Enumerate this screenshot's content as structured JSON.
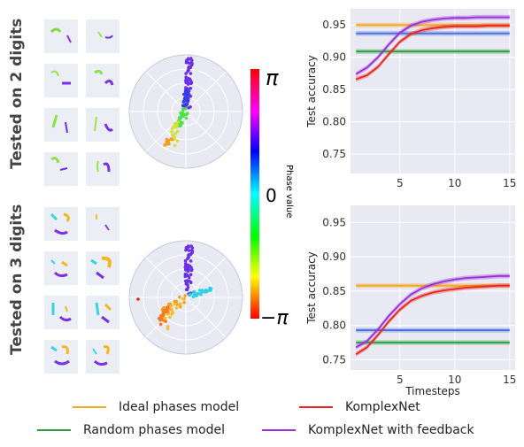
{
  "row_labels": [
    "Tested on 2 digits",
    "Tested on 3 digits"
  ],
  "colorbar": {
    "top_label": "π",
    "mid_label": "0",
    "bottom_label": "−π",
    "title": "Phase value"
  },
  "colors": {
    "ideal": "#f5a623",
    "komplexnet": "#e8261f",
    "random": "#2a9d3a",
    "feedback": "#9b30d9",
    "plot_bg": "#e8e9f3"
  },
  "legend": [
    {
      "label": "Ideal phases model",
      "color": "#f5a623"
    },
    {
      "label": "KomplexNet",
      "color": "#e8261f"
    },
    {
      "label": "Random phases model",
      "color": "#2a9d3a"
    },
    {
      "label": "KomplexNet with feedback",
      "color": "#9b30d9"
    }
  ],
  "chart_data": [
    {
      "type": "line",
      "ylabel": "Test accuracy",
      "xlabel": "",
      "xlim": [
        0.5,
        15.5
      ],
      "ylim": [
        0.72,
        0.975
      ],
      "xticks": [
        5,
        10,
        15
      ],
      "yticks": [
        0.75,
        0.8,
        0.85,
        0.9,
        0.95
      ],
      "grid": true,
      "series": [
        {
          "name": "Ideal phases model",
          "x": [
            1,
            15
          ],
          "y": [
            0.95,
            0.95
          ]
        },
        {
          "name": "Random phases model",
          "x": [
            1,
            15
          ],
          "y": [
            0.909,
            0.909
          ]
        },
        {
          "name": "KomplexNet",
          "x": [
            1,
            2,
            3,
            4,
            5,
            6,
            7,
            8,
            9,
            10,
            11,
            12,
            13,
            14,
            15
          ],
          "y": [
            0.866,
            0.872,
            0.885,
            0.905,
            0.924,
            0.936,
            0.942,
            0.945,
            0.947,
            0.948,
            0.948,
            0.948,
            0.949,
            0.949,
            0.949
          ]
        },
        {
          "name": "KomplexNet with feedback",
          "x": [
            1,
            2,
            3,
            4,
            5,
            6,
            7,
            8,
            9,
            10,
            11,
            12,
            13,
            14,
            15
          ],
          "y": [
            0.874,
            0.884,
            0.9,
            0.92,
            0.938,
            0.949,
            0.955,
            0.958,
            0.96,
            0.961,
            0.961,
            0.962,
            0.962,
            0.962,
            0.962
          ]
        },
        {
          "name": "",
          "x": [
            1,
            15
          ],
          "y": [
            0.937,
            0.937
          ]
        }
      ]
    },
    {
      "type": "line",
      "ylabel": "Test accuracy",
      "xlabel": "Timesteps",
      "xlim": [
        0.5,
        15.5
      ],
      "ylim": [
        0.735,
        0.975
      ],
      "xticks": [
        5,
        10,
        15
      ],
      "yticks": [
        0.75,
        0.8,
        0.85,
        0.9,
        0.95
      ],
      "grid": true,
      "series": [
        {
          "name": "Ideal phases model",
          "x": [
            1,
            15
          ],
          "y": [
            0.858,
            0.858
          ]
        },
        {
          "name": "Random phases model",
          "x": [
            1,
            15
          ],
          "y": [
            0.775,
            0.775
          ]
        },
        {
          "name": "KomplexNet",
          "x": [
            1,
            2,
            3,
            4,
            5,
            6,
            7,
            8,
            9,
            10,
            11,
            12,
            13,
            14,
            15
          ],
          "y": [
            0.758,
            0.768,
            0.786,
            0.806,
            0.823,
            0.836,
            0.843,
            0.848,
            0.851,
            0.853,
            0.855,
            0.856,
            0.857,
            0.858,
            0.858
          ]
        },
        {
          "name": "KomplexNet with feedback",
          "x": [
            1,
            2,
            3,
            4,
            5,
            6,
            7,
            8,
            9,
            10,
            11,
            12,
            13,
            14,
            15
          ],
          "y": [
            0.768,
            0.777,
            0.794,
            0.814,
            0.831,
            0.845,
            0.854,
            0.86,
            0.864,
            0.867,
            0.869,
            0.87,
            0.871,
            0.872,
            0.872
          ]
        },
        {
          "name": "",
          "x": [
            1,
            15
          ],
          "y": [
            0.793,
            0.793
          ]
        }
      ]
    }
  ]
}
